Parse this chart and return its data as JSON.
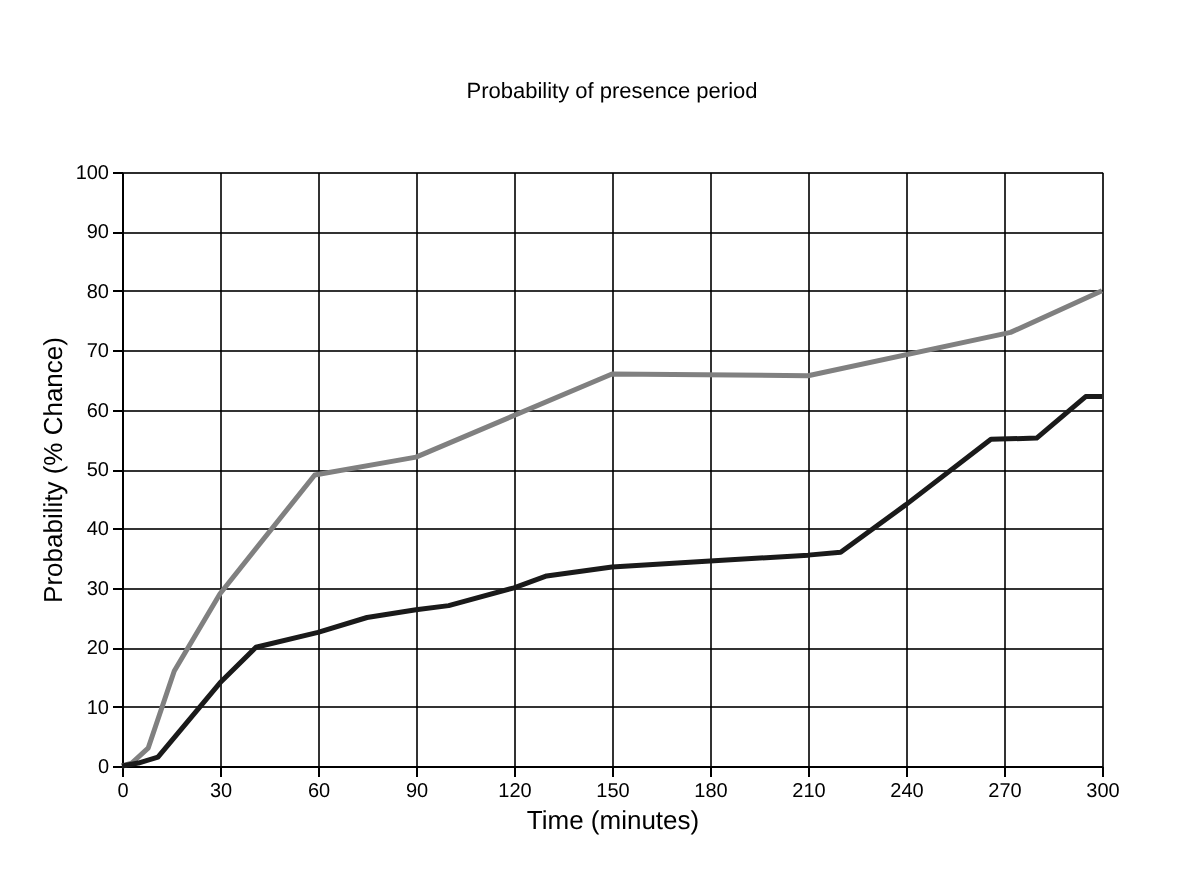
{
  "chart_data": {
    "type": "line",
    "title": "Probability of presence period",
    "xlabel": "Time (minutes)",
    "ylabel": "Probability (% Chance)",
    "series": [
      {
        "color": "#808080",
        "x": [
          0,
          3,
          8,
          16,
          30,
          59,
          90,
          150,
          210,
          272,
          300
        ],
        "values": [
          0,
          0.5,
          3,
          16,
          29,
          49,
          52,
          66,
          65.7,
          73,
          80
        ]
      },
      {
        "color": "#1a1a1a",
        "x": [
          0,
          5,
          11,
          30,
          41,
          60,
          75,
          90,
          100,
          120,
          130,
          150,
          180,
          210,
          220,
          240,
          266,
          280,
          295,
          300
        ],
        "values": [
          0,
          0.5,
          1.5,
          14,
          20,
          22.5,
          25,
          26.3,
          27,
          30,
          32,
          33.5,
          34.5,
          35.5,
          36,
          44,
          55,
          55.2,
          62.2,
          62.2
        ]
      }
    ],
    "xlim": [
      0,
      300
    ],
    "xticks": [
      0,
      30,
      60,
      90,
      120,
      150,
      180,
      210,
      240,
      270,
      300
    ],
    "ylim": [
      0,
      100
    ],
    "yticks": [
      0,
      10,
      20,
      30,
      40,
      50,
      60,
      70,
      80,
      90,
      100
    ],
    "grid": true,
    "marker": "none",
    "line_style": "solid"
  }
}
